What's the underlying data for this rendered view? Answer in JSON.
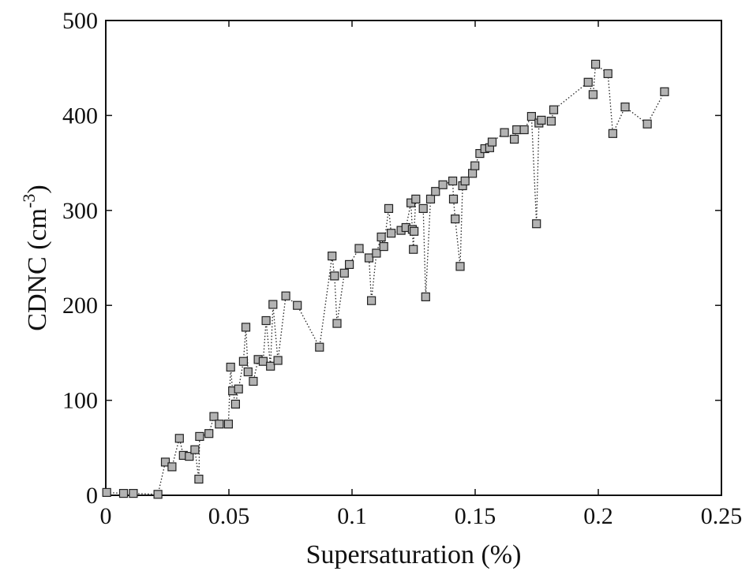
{
  "chart_data": {
    "type": "line",
    "title": "",
    "xlabel": "Supersaturation (%)",
    "ylabel": {
      "prefix": "CDNC (cm",
      "superscript": "-3",
      "suffix": ")"
    },
    "xlim": [
      0,
      0.25
    ],
    "ylim": [
      0,
      500
    ],
    "xticks": [
      0,
      0.05,
      0.1,
      0.15,
      0.2,
      0.25
    ],
    "xtick_labels": [
      "0",
      "0.05",
      "0.1",
      "0.15",
      "0.2",
      "0.25"
    ],
    "yticks": [
      0,
      100,
      200,
      300,
      400,
      500
    ],
    "ytick_labels": [
      "0",
      "100",
      "200",
      "300",
      "400",
      "500"
    ],
    "grid": false,
    "legend": false,
    "series": [
      {
        "marker": "square",
        "line_style": "dotted",
        "marker_color": "#b3b3b3",
        "edge_color": "#222222",
        "x": [
          0.0004,
          0.0072,
          0.0112,
          0.0212,
          0.0242,
          0.0269,
          0.0299,
          0.0315,
          0.0339,
          0.0362,
          0.0378,
          0.0381,
          0.0419,
          0.0439,
          0.0461,
          0.0498,
          0.0507,
          0.0515,
          0.0527,
          0.0539,
          0.0559,
          0.0569,
          0.0578,
          0.0599,
          0.0619,
          0.0639,
          0.0651,
          0.0669,
          0.0679,
          0.0699,
          0.0731,
          0.0778,
          0.0868,
          0.0919,
          0.0929,
          0.0939,
          0.0969,
          0.0989,
          0.1029,
          0.1069,
          0.1079,
          0.1099,
          0.1119,
          0.1129,
          0.1149,
          0.1159,
          0.1199,
          0.1219,
          0.1239,
          0.1245,
          0.1249,
          0.1252,
          0.1259,
          0.1289,
          0.1299,
          0.1319,
          0.1339,
          0.1369,
          0.1409,
          0.1412,
          0.1419,
          0.1439,
          0.1449,
          0.1459,
          0.1489,
          0.1499,
          0.1519,
          0.1539,
          0.1559,
          0.1569,
          0.1619,
          0.1659,
          0.1669,
          0.1699,
          0.1729,
          0.1749,
          0.1759,
          0.1769,
          0.1809,
          0.1819,
          0.1959,
          0.1979,
          0.1989,
          0.2039,
          0.2059,
          0.2109,
          0.2199,
          0.2269
        ],
        "y": [
          3,
          2,
          2,
          1,
          35,
          30,
          60,
          42,
          41,
          48,
          17,
          62,
          65,
          83,
          75,
          75,
          135,
          110,
          96,
          112,
          141,
          177,
          130,
          120,
          143,
          141,
          184,
          136,
          201,
          142,
          210,
          200,
          156,
          252,
          231,
          181,
          234,
          243,
          260,
          250,
          205,
          255,
          272,
          262,
          302,
          276,
          279,
          282,
          308,
          280,
          259,
          278,
          312,
          302,
          209,
          312,
          320,
          327,
          331,
          312,
          291,
          241,
          326,
          331,
          339,
          347,
          360,
          365,
          366,
          372,
          382,
          375,
          385,
          385,
          399,
          286,
          392,
          395,
          394,
          406,
          435,
          422,
          454,
          444,
          381,
          409,
          391,
          425
        ]
      }
    ]
  }
}
